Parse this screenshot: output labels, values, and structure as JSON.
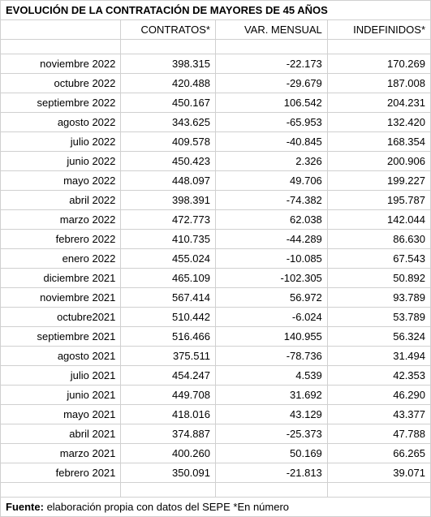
{
  "title": "EVOLUCIÓN DE LA CONTRATACIÓN DE MAYORES DE 45 AÑOS",
  "columns": [
    "",
    "CONTRATOS*",
    "VAR. MENSUAL",
    "INDEFINIDOS*"
  ],
  "rows": [
    {
      "label": "noviembre 2022",
      "contratos": "398.315",
      "var": "-22.173",
      "indef": "170.269"
    },
    {
      "label": "octubre 2022",
      "contratos": "420.488",
      "var": "-29.679",
      "indef": "187.008"
    },
    {
      "label": "septiembre 2022",
      "contratos": "450.167",
      "var": "106.542",
      "indef": "204.231"
    },
    {
      "label": "agosto 2022",
      "contratos": "343.625",
      "var": "-65.953",
      "indef": "132.420"
    },
    {
      "label": "julio 2022",
      "contratos": "409.578",
      "var": "-40.845",
      "indef": "168.354"
    },
    {
      "label": "junio 2022",
      "contratos": "450.423",
      "var": "2.326",
      "indef": "200.906"
    },
    {
      "label": "mayo 2022",
      "contratos": "448.097",
      "var": "49.706",
      "indef": "199.227"
    },
    {
      "label": "abril 2022",
      "contratos": "398.391",
      "var": "-74.382",
      "indef": "195.787"
    },
    {
      "label": "marzo 2022",
      "contratos": "472.773",
      "var": "62.038",
      "indef": "142.044"
    },
    {
      "label": "febrero 2022",
      "contratos": "410.735",
      "var": "-44.289",
      "indef": "86.630"
    },
    {
      "label": "enero 2022",
      "contratos": "455.024",
      "var": "-10.085",
      "indef": "67.543"
    },
    {
      "label": "diciembre 2021",
      "contratos": "465.109",
      "var": "-102.305",
      "indef": "50.892"
    },
    {
      "label": "noviembre 2021",
      "contratos": "567.414",
      "var": "56.972",
      "indef": "93.789"
    },
    {
      "label": "octubre2021",
      "contratos": "510.442",
      "var": "-6.024",
      "indef": "53.789"
    },
    {
      "label": "septiembre 2021",
      "contratos": "516.466",
      "var": "140.955",
      "indef": "56.324"
    },
    {
      "label": "agosto 2021",
      "contratos": "375.511",
      "var": "-78.736",
      "indef": "31.494"
    },
    {
      "label": "julio 2021",
      "contratos": "454.247",
      "var": "4.539",
      "indef": "42.353"
    },
    {
      "label": "junio 2021",
      "contratos": "449.708",
      "var": "31.692",
      "indef": "46.290"
    },
    {
      "label": "mayo 2021",
      "contratos": "418.016",
      "var": "43.129",
      "indef": "43.377"
    },
    {
      "label": "abril 2021",
      "contratos": "374.887",
      "var": "-25.373",
      "indef": "47.788"
    },
    {
      "label": "marzo 2021",
      "contratos": "400.260",
      "var": "50.169",
      "indef": "66.265"
    },
    {
      "label": "febrero 2021",
      "contratos": "350.091",
      "var": "-21.813",
      "indef": "39.071"
    }
  ],
  "footer_bold": "Fuente: ",
  "footer_rest": "elaboración propia con datos del SEPE *En número"
}
